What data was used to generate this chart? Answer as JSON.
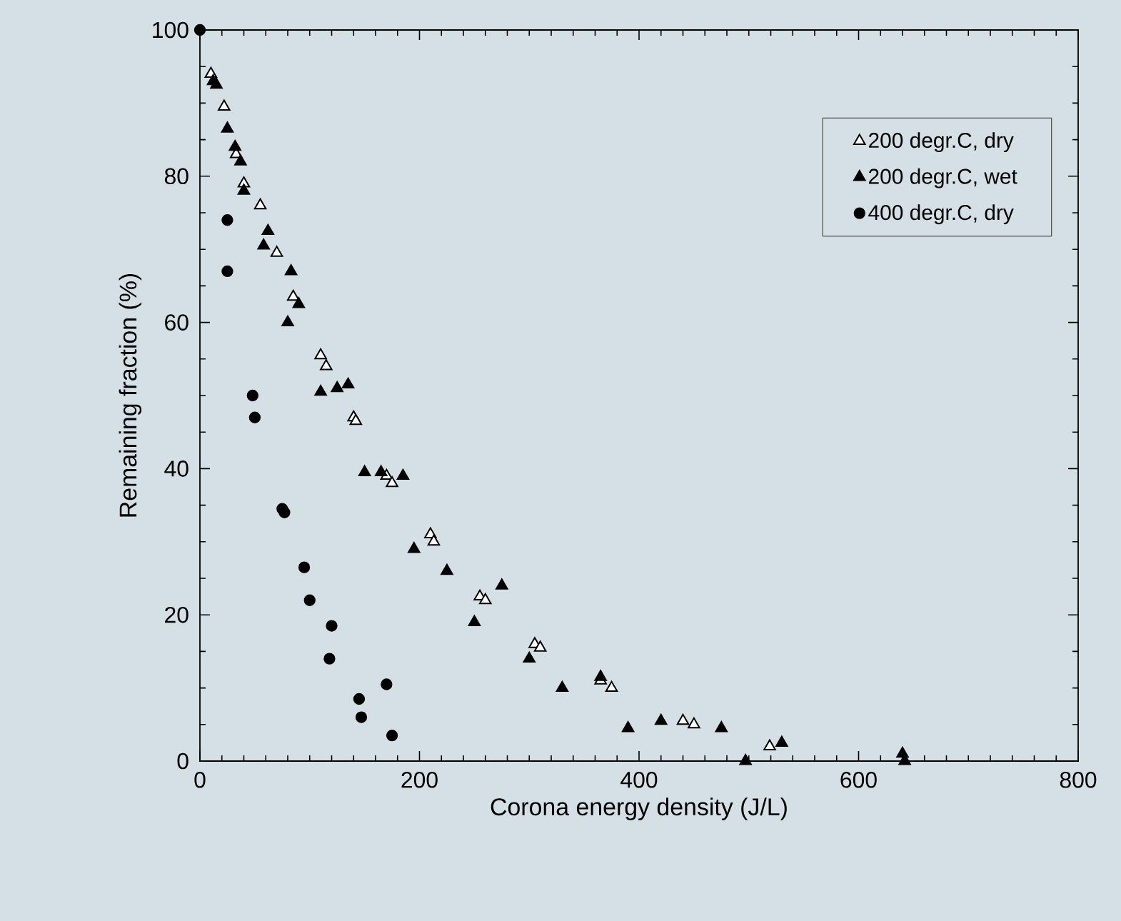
{
  "chart_data": {
    "type": "scatter",
    "xlabel": "Corona energy density (J/L)",
    "ylabel": "Remaining fraction (%)",
    "xlim": [
      0,
      800
    ],
    "xticks": [
      0,
      200,
      400,
      600,
      800
    ],
    "ylim": [
      0,
      100
    ],
    "yticks": [
      0,
      20,
      40,
      60,
      80,
      100
    ],
    "grid": false,
    "legend": "top right",
    "series": [
      {
        "name": "200 degr.C, dry",
        "color": "#000000",
        "marker": "triangle",
        "x": [
          10,
          22,
          33,
          40,
          55,
          70,
          85,
          110,
          115,
          140,
          142,
          170,
          175,
          210,
          213,
          255,
          260,
          305,
          310,
          365,
          375,
          440,
          450,
          519
        ],
        "values": [
          94,
          89.5,
          83,
          79,
          76,
          69.5,
          63.5,
          55.5,
          54,
          47,
          46.5,
          39,
          38,
          31,
          30,
          22.5,
          22,
          16,
          15.5,
          11,
          10,
          5.5,
          5,
          2
        ]
      },
      {
        "name": "200 degr.C, wet",
        "color": "#000000",
        "marker": "triangle",
        "x": [
          12,
          15,
          25,
          32,
          37,
          40,
          58,
          62,
          83,
          80,
          90,
          110,
          125,
          135,
          150,
          165,
          185,
          195,
          225,
          250,
          275,
          300,
          330,
          365,
          390,
          420,
          475,
          497,
          530,
          640,
          642
        ],
        "values": [
          93,
          92.5,
          86.5,
          84,
          82,
          78,
          70.5,
          72.5,
          67,
          60,
          62.5,
          50.5,
          51,
          51.5,
          39.5,
          39.5,
          39,
          29,
          26,
          19,
          24,
          14,
          10,
          11.5,
          4.5,
          5.5,
          4.5,
          0,
          2.5,
          1,
          0
        ]
      },
      {
        "name": "400 degr.C, dry",
        "color": "#000000",
        "marker": "circle",
        "x": [
          0,
          25,
          25,
          48,
          50,
          75,
          77,
          95,
          100,
          120,
          118,
          145,
          147,
          170,
          175
        ],
        "values": [
          100,
          74,
          67,
          50,
          47,
          34.5,
          34,
          26.5,
          22,
          18.5,
          14,
          8.5,
          6,
          10.5,
          3.5
        ]
      }
    ]
  }
}
